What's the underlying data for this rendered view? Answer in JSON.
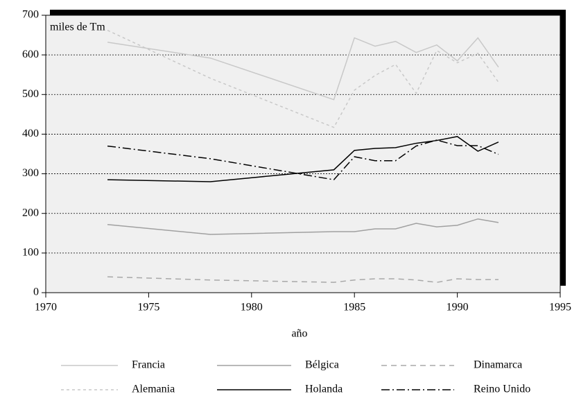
{
  "chart_data": {
    "type": "line",
    "title": "miles de Tm",
    "x_label": "año",
    "x": [
      1973,
      1978,
      1984,
      1985,
      1986,
      1987,
      1988,
      1989,
      1990,
      1991,
      1992
    ],
    "xlim": [
      1970,
      1995
    ],
    "xticks": [
      1970,
      1975,
      1980,
      1985,
      1990,
      1995
    ],
    "ylim": [
      0,
      700
    ],
    "yticks": [
      0,
      100,
      200,
      300,
      400,
      500,
      600,
      700
    ],
    "grid": true,
    "legend": "bottom",
    "series": [
      {
        "name": "Francia",
        "color": "#c8c8c8",
        "dash": "none",
        "values": [
          632,
          592,
          487,
          643,
          622,
          634,
          606,
          625,
          585,
          643,
          569
        ]
      },
      {
        "name": "Bélgica",
        "color": "#a0a0a0",
        "dash": "none",
        "values": [
          172,
          147,
          154,
          154,
          161,
          161,
          175,
          166,
          170,
          186,
          177
        ]
      },
      {
        "name": "Dinamarca",
        "color": "#a8a8a8",
        "dash": "8,6",
        "values": [
          40,
          32,
          26,
          32,
          35,
          35,
          32,
          26,
          35,
          33,
          33
        ]
      },
      {
        "name": "Alemania",
        "color": "#c8c8c8",
        "dash": "4,4",
        "values": [
          662,
          541,
          417,
          511,
          548,
          576,
          503,
          611,
          580,
          604,
          531
        ]
      },
      {
        "name": "Holanda",
        "color": "#000000",
        "dash": "none",
        "values": [
          285,
          280,
          310,
          359,
          364,
          366,
          377,
          384,
          394,
          357,
          380
        ]
      },
      {
        "name": "Reino Unido",
        "color": "#000000",
        "dash": "12,4,2,4",
        "values": [
          370,
          338,
          285,
          343,
          333,
          333,
          370,
          385,
          371,
          371,
          349
        ]
      }
    ]
  }
}
